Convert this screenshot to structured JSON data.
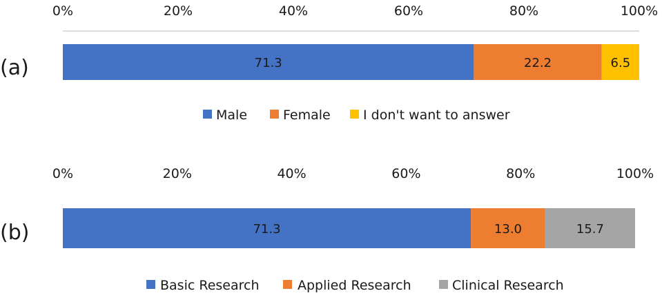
{
  "chart_data": [
    {
      "type": "bar",
      "orientation": "horizontal",
      "stacked": true,
      "panel_label": "(a)",
      "x_ticks": [
        "0%",
        "20%",
        "40%",
        "60%",
        "80%",
        "100%"
      ],
      "xlim": [
        0,
        100
      ],
      "grid": false,
      "legend_position": "bottom",
      "series": [
        {
          "name": "Male",
          "value": 71.3,
          "label": "71.3",
          "color": "#4472C4"
        },
        {
          "name": "Female",
          "value": 22.2,
          "label": "22.2",
          "color": "#ED7D31"
        },
        {
          "name": "I don't want to answer",
          "value": 6.5,
          "label": "6.5",
          "color": "#FFC000"
        }
      ]
    },
    {
      "type": "bar",
      "orientation": "horizontal",
      "stacked": true,
      "panel_label": "(b)",
      "x_ticks": [
        "0%",
        "20%",
        "40%",
        "60%",
        "80%",
        "100%"
      ],
      "xlim": [
        0,
        100
      ],
      "grid": false,
      "legend_position": "bottom",
      "series": [
        {
          "name": "Basic Research",
          "value": 71.3,
          "label": "71.3",
          "color": "#4472C4"
        },
        {
          "name": "Applied Research",
          "value": 13.0,
          "label": "13.0",
          "color": "#ED7D31"
        },
        {
          "name": "Clinical Research",
          "value": 15.7,
          "label": "15.7",
          "color": "#A5A5A5"
        }
      ]
    }
  ]
}
